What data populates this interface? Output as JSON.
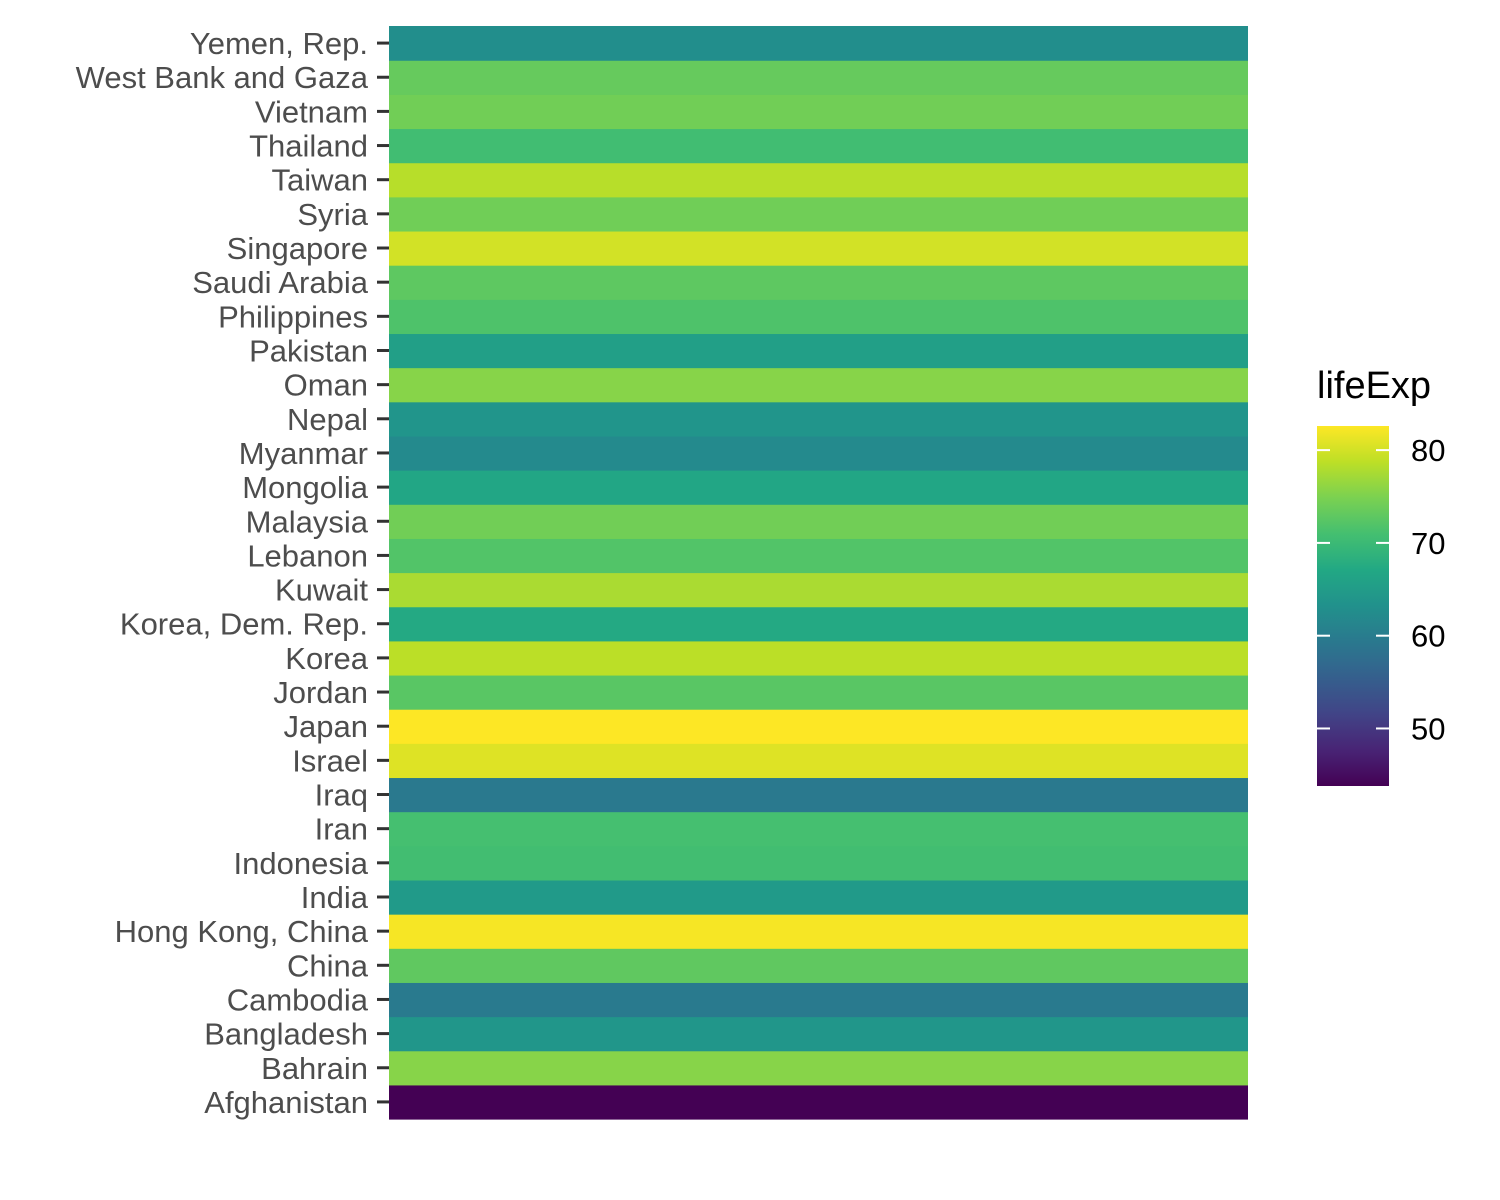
{
  "chart_data": {
    "type": "heatmap",
    "categories": [
      "Afghanistan",
      "Bahrain",
      "Bangladesh",
      "Cambodia",
      "China",
      "Hong Kong, China",
      "India",
      "Indonesia",
      "Iran",
      "Iraq",
      "Israel",
      "Japan",
      "Jordan",
      "Korea",
      "Korea, Dem. Rep.",
      "Kuwait",
      "Lebanon",
      "Malaysia",
      "Mongolia",
      "Myanmar",
      "Nepal",
      "Oman",
      "Pakistan",
      "Philippines",
      "Saudi Arabia",
      "Singapore",
      "Syria",
      "Taiwan",
      "Thailand",
      "Vietnam",
      "West Bank and Gaza",
      "Yemen, Rep."
    ],
    "values": [
      43.8,
      75.6,
      64.1,
      59.7,
      73.0,
      82.2,
      64.7,
      70.7,
      71.0,
      59.5,
      80.7,
      82.6,
      72.5,
      78.6,
      67.3,
      77.6,
      72.0,
      74.2,
      66.8,
      62.1,
      63.8,
      75.6,
      65.5,
      71.7,
      72.8,
      80.0,
      74.1,
      78.4,
      70.6,
      74.2,
      73.4,
      62.7
    ],
    "xlabel": "",
    "ylabel": "",
    "colorscale": "viridis",
    "color_range": [
      43.8,
      82.6
    ],
    "legend": {
      "title": "lifeExp",
      "ticks": [
        50,
        60,
        70,
        80
      ],
      "placement": "right"
    },
    "grid": false
  }
}
